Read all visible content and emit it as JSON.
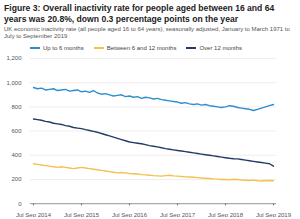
{
  "chart_data": {
    "type": "line",
    "title": "Figure 3: Overall inactivity rate for people aged between 16 and 64 years was 20.8%, down 0.3 percentage points on the year",
    "subtitle": "UK economic inactivity rate (all people aged 16 to 64 years), seasonally adjusted, January to March 1971 to July to September 2019",
    "categories": [
      "Jul Sep 2014",
      null,
      null,
      null,
      null,
      null,
      null,
      null,
      null,
      null,
      null,
      null,
      "Jul Sep 2015",
      null,
      null,
      null,
      null,
      null,
      null,
      null,
      null,
      null,
      null,
      null,
      "Jul Sep 2016",
      null,
      null,
      null,
      null,
      null,
      null,
      null,
      null,
      null,
      null,
      null,
      "Jul Sep 2017",
      null,
      null,
      null,
      null,
      null,
      null,
      null,
      null,
      null,
      null,
      null,
      "Jul Sep 2018",
      null,
      null,
      null,
      null,
      null,
      null,
      null,
      null,
      null,
      null,
      null,
      "Jul Sep 2019"
    ],
    "series": [
      {
        "name": "Up to 6 months",
        "color": "#2e8fcf",
        "values": [
          960,
          950,
          955,
          940,
          945,
          950,
          935,
          940,
          945,
          930,
          935,
          940,
          925,
          930,
          920,
          935,
          915,
          905,
          910,
          900,
          890,
          895,
          900,
          885,
          890,
          880,
          885,
          870,
          880,
          875,
          865,
          870,
          860,
          855,
          850,
          845,
          840,
          830,
          835,
          825,
          820,
          825,
          815,
          820,
          810,
          805,
          800,
          795,
          800,
          810,
          805,
          795,
          790,
          785,
          780,
          770,
          780,
          790,
          800,
          810,
          820
        ]
      },
      {
        "name": "Between 6 and 12 months",
        "color": "#f2c14e",
        "values": [
          330,
          325,
          320,
          315,
          310,
          305,
          300,
          305,
          300,
          295,
          290,
          295,
          300,
          295,
          290,
          285,
          280,
          275,
          270,
          265,
          260,
          255,
          258,
          255,
          250,
          248,
          245,
          240,
          238,
          235,
          232,
          230,
          228,
          232,
          235,
          230,
          228,
          225,
          222,
          220,
          218,
          215,
          212,
          210,
          208,
          205,
          203,
          200,
          200,
          198,
          202,
          200,
          196,
          194,
          192,
          195,
          190,
          188,
          190,
          192,
          190
        ]
      },
      {
        "name": "Over 12 months",
        "color": "#1f3d66",
        "values": [
          700,
          695,
          690,
          680,
          675,
          665,
          660,
          655,
          645,
          640,
          630,
          625,
          620,
          612,
          605,
          598,
          590,
          580,
          570,
          560,
          550,
          540,
          530,
          520,
          510,
          505,
          500,
          495,
          488,
          480,
          475,
          470,
          462,
          455,
          450,
          445,
          440,
          435,
          430,
          425,
          420,
          415,
          410,
          405,
          400,
          395,
          390,
          385,
          380,
          375,
          372,
          370,
          365,
          360,
          355,
          350,
          345,
          340,
          335,
          330,
          310
        ]
      }
    ],
    "ylim": [
      0,
      1200
    ],
    "yticks": [
      0,
      200,
      400,
      600,
      800,
      {
        "value": 1000,
        "label": "1,000"
      },
      {
        "value": 1200,
        "label": "1,200"
      }
    ],
    "grid": true,
    "legend": "top"
  }
}
